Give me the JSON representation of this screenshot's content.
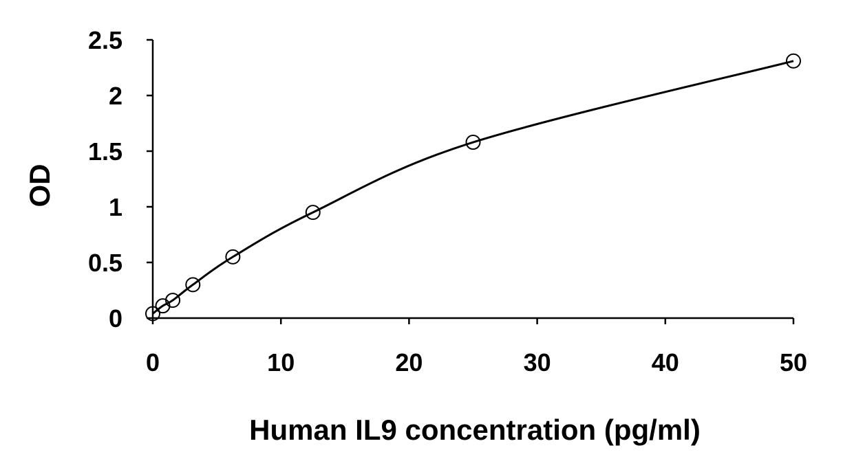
{
  "chart_data": {
    "type": "scatter",
    "title": "",
    "xlabel": "Human IL9 concentration (pg/ml)",
    "ylabel": "OD",
    "xlim": [
      0,
      50
    ],
    "ylim": [
      0,
      2.5
    ],
    "x_ticks": [
      0,
      10,
      20,
      30,
      40,
      50
    ],
    "y_ticks": [
      0,
      0.5,
      1,
      1.5,
      2,
      2.5
    ],
    "x_tick_labels": [
      "0",
      "10",
      "20",
      "30",
      "40",
      "50"
    ],
    "y_tick_labels": [
      "0",
      "0.5",
      "1",
      "1.5",
      "2",
      "2.5"
    ],
    "grid": false,
    "legend": "none",
    "series": [
      {
        "x": [
          0,
          0.78,
          1.56,
          3.13,
          6.25,
          12.5,
          25,
          50
        ],
        "y": [
          0.04,
          0.11,
          0.16,
          0.3,
          0.55,
          0.95,
          1.58,
          2.31
        ],
        "marker": "open-circle",
        "trendline": "smooth-curve",
        "color": "#000000"
      }
    ]
  }
}
